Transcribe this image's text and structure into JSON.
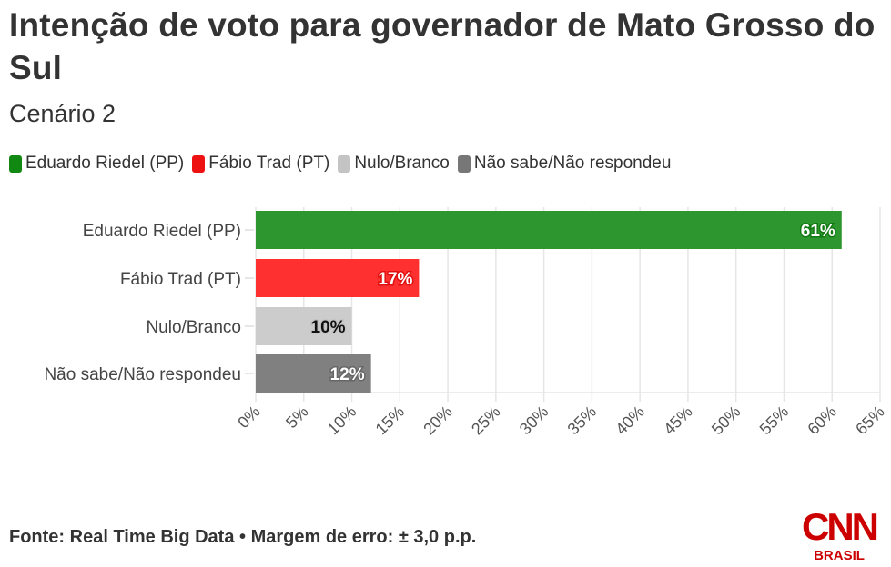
{
  "title": "Intenção de voto para governador de Mato Grosso do Sul",
  "subtitle": "Cenário 2",
  "legend": [
    {
      "label": "Eduardo Riedel (PP)",
      "color": "#118811"
    },
    {
      "label": "Fábio Trad (PT)",
      "color": "#ee1111"
    },
    {
      "label": "Nulo/Branco",
      "color": "#c4c4c4"
    },
    {
      "label": "Não sabe/Não respondeu",
      "color": "#777777"
    }
  ],
  "footer": "Fonte: Real Time Big Data • Margem de erro: ± 3,0 p.p.",
  "logo": {
    "top": "CNN",
    "bottom": "BRASIL",
    "color": "#cc0000"
  },
  "chart_data": {
    "type": "bar",
    "orientation": "horizontal",
    "title": "Intenção de voto para governador de Mato Grosso do Sul",
    "subtitle": "Cenário 2",
    "categories": [
      "Eduardo Riedel (PP)",
      "Fábio Trad (PT)",
      "Nulo/Branco",
      "Não sabe/Não respondeu"
    ],
    "values": [
      61,
      17,
      10,
      12
    ],
    "data_labels": [
      "61%",
      "17%",
      "10%",
      "12%"
    ],
    "bar_colors": [
      "#2e962e",
      "#ff3030",
      "#cccccc",
      "#808080"
    ],
    "label_colors": [
      "#ffffff",
      "#ffffff",
      "#111111",
      "#ffffff"
    ],
    "label_halo_colors": [
      "#137a13",
      "#e01010",
      "#c4c4c4",
      "#666666"
    ],
    "xlim": [
      0,
      65
    ],
    "xticks": [
      0,
      5,
      10,
      15,
      20,
      25,
      30,
      35,
      40,
      45,
      50,
      55,
      60,
      65
    ],
    "xtick_labels": [
      "0%",
      "5%",
      "10%",
      "15%",
      "20%",
      "25%",
      "30%",
      "35%",
      "40%",
      "45%",
      "50%",
      "55%",
      "60%",
      "65%"
    ],
    "xlabel": "",
    "ylabel": "",
    "grid": true,
    "legend_position": "top-left",
    "source": "Fonte: Real Time Big Data • Margem de erro: ± 3,0 p.p."
  }
}
